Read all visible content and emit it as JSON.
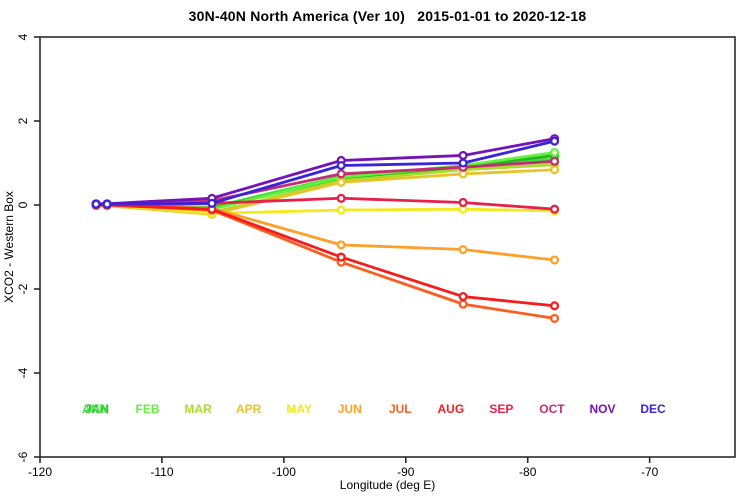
{
  "chart_data": {
    "type": "line",
    "title": "30N-40N North America (Ver 10)   2015-01-01 to 2020-12-18",
    "xlabel": "Longitude (deg E)",
    "ylabel": "XCO2 - Western Box",
    "xlim": [
      -120,
      -63
    ],
    "ylim": [
      -6,
      4
    ],
    "xticks": [
      -120,
      -110,
      -100,
      -90,
      -80,
      -70
    ],
    "yticks": [
      4,
      2,
      0,
      -2,
      -4,
      -6
    ],
    "grid": false,
    "legend_position": "bottom-inside",
    "marker": "open-circle",
    "x": [
      -115.4,
      -114.5,
      -105.9,
      -95.3,
      -85.3,
      -77.8
    ],
    "series": [
      {
        "name": "ANN",
        "color": "#3FE23F",
        "values": [
          0.0,
          0.0,
          -0.05,
          0.68,
          0.92,
          1.1
        ]
      },
      {
        "name": "JAN",
        "color": "#27B527",
        "values": [
          0.02,
          0.02,
          -0.08,
          0.64,
          0.9,
          1.18
        ]
      },
      {
        "name": "FEB",
        "color": "#63F23C",
        "values": [
          0.0,
          0.0,
          -0.1,
          0.66,
          0.94,
          1.25
        ]
      },
      {
        "name": "MAR",
        "color": "#A8DC28",
        "values": [
          0.0,
          0.0,
          -0.18,
          0.58,
          0.84,
          0.96
        ]
      },
      {
        "name": "APR",
        "color": "#E8C428",
        "values": [
          -0.02,
          -0.02,
          -0.22,
          0.54,
          0.74,
          0.84
        ]
      },
      {
        "name": "MAY",
        "color": "#F5E81D",
        "values": [
          0.0,
          0.0,
          -0.2,
          -0.12,
          -0.1,
          -0.14
        ]
      },
      {
        "name": "JUN",
        "color": "#FD9F28",
        "values": [
          0.0,
          0.0,
          -0.08,
          -0.95,
          -1.06,
          -1.31
        ]
      },
      {
        "name": "JUL",
        "color": "#FB5E20",
        "values": [
          0.0,
          0.0,
          -0.12,
          -1.36,
          -2.36,
          -2.7
        ]
      },
      {
        "name": "AUG",
        "color": "#F51D1D",
        "values": [
          0.0,
          0.0,
          -0.1,
          -1.24,
          -2.18,
          -2.4
        ]
      },
      {
        "name": "SEP",
        "color": "#E81F48",
        "values": [
          0.0,
          0.0,
          0.04,
          0.16,
          0.06,
          -0.1
        ]
      },
      {
        "name": "OCT",
        "color": "#C62C72",
        "values": [
          0.02,
          0.02,
          0.1,
          0.74,
          0.9,
          1.04
        ]
      },
      {
        "name": "NOV",
        "color": "#7513B8",
        "values": [
          0.03,
          0.03,
          0.16,
          1.06,
          1.18,
          1.58
        ]
      },
      {
        "name": "DEC",
        "color": "#3A23D8",
        "values": [
          0.02,
          0.02,
          0.04,
          0.94,
          1.0,
          1.52
        ]
      }
    ],
    "legend": {
      "months": [
        "JAN",
        "FEB",
        "MAR",
        "APR",
        "MAY",
        "JUN",
        "JUL",
        "AUG",
        "SEP",
        "OCT",
        "NOV",
        "DEC"
      ],
      "annual_label": "ANN",
      "note": "ANN label overlaps JAN label"
    }
  }
}
